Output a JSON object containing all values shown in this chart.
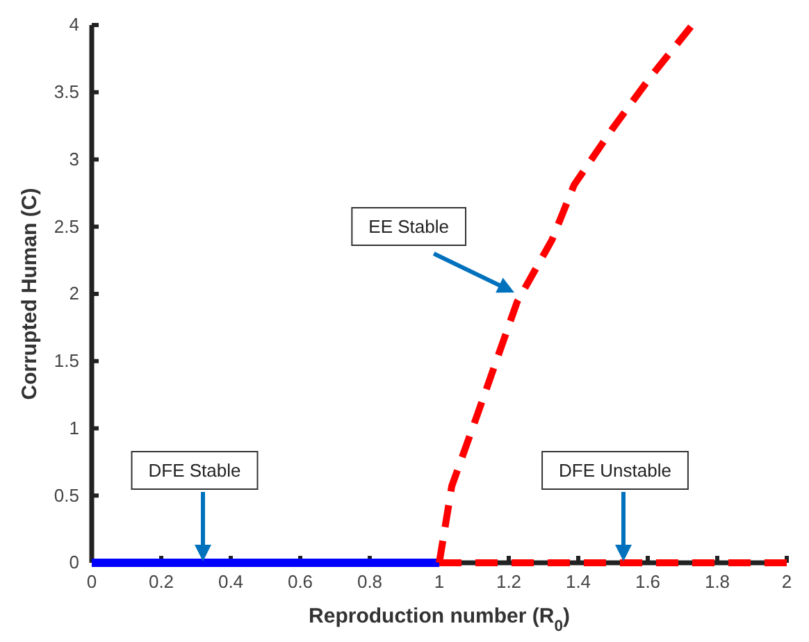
{
  "chart_data": {
    "type": "line",
    "xlabel": "Reproduction number (R$_{0}$)",
    "ylabel": "Corrupted Human (C)",
    "xlim": [
      0,
      2
    ],
    "ylim": [
      0,
      4
    ],
    "xticks": [
      0,
      0.2,
      0.4,
      0.6,
      0.8,
      1,
      1.2,
      1.4,
      1.6,
      1.8,
      2
    ],
    "yticks": [
      0,
      0.5,
      1,
      1.5,
      2,
      2.5,
      3,
      3.5,
      4
    ],
    "grid": false,
    "marker": "none",
    "series": [
      {
        "color": "#0000ff",
        "line_style": "solid",
        "x": [
          0,
          1
        ],
        "values": [
          0,
          0
        ]
      },
      {
        "color": "#ff0000",
        "line_style": "dashed",
        "x": [
          1,
          2
        ],
        "values": [
          0,
          0
        ]
      },
      {
        "color": "#ff0000",
        "line_style": "dashed",
        "x": [
          1,
          1.036,
          1.108,
          1.224,
          1.324,
          1.388,
          1.496,
          1.604,
          1.728
        ],
        "values": [
          0,
          0.57,
          1.09,
          1.94,
          2.4,
          2.81,
          3.22,
          3.6,
          4
        ]
      }
    ],
    "annotations": [
      "EE Stable",
      "DFE Stable",
      "DFE Unstable"
    ]
  }
}
